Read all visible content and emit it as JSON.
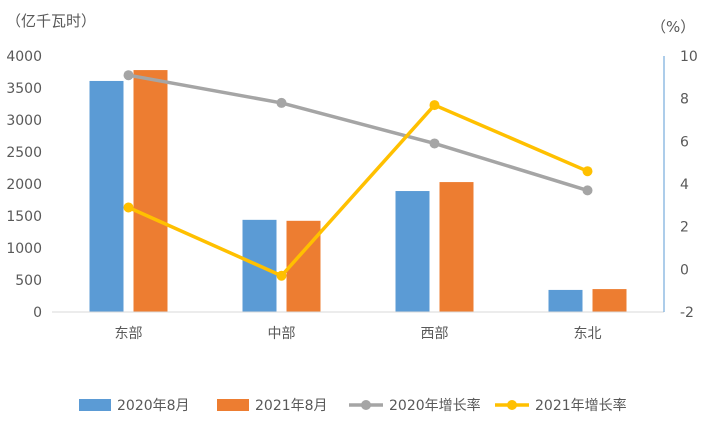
{
  "chart_data": {
    "type": "bar",
    "categories": [
      "东部",
      "中部",
      "西部",
      "东北"
    ],
    "series": [
      {
        "name": "2020年8月",
        "kind": "bar",
        "axis": "left",
        "color": "#5b9bd5",
        "values": [
          3610,
          1440,
          1890,
          345
        ]
      },
      {
        "name": "2021年8月",
        "kind": "bar",
        "axis": "left",
        "color": "#ed7d31",
        "values": [
          3780,
          1425,
          2030,
          358
        ]
      },
      {
        "name": "2020年增长率",
        "kind": "line",
        "axis": "right",
        "color": "#a5a5a5",
        "values": [
          9.1,
          7.8,
          5.9,
          3.7
        ]
      },
      {
        "name": "2021年增长率",
        "kind": "line",
        "axis": "right",
        "color": "#ffc000",
        "values": [
          2.9,
          -0.3,
          7.7,
          4.6
        ]
      }
    ],
    "left_axis": {
      "unit": "（亿千瓦时）",
      "min": 0,
      "max": 4000,
      "step": 500,
      "ticks": [
        "0",
        "500",
        "1000",
        "1500",
        "2000",
        "2500",
        "3000",
        "3500",
        "4000"
      ]
    },
    "right_axis": {
      "unit": "（%）",
      "min": -2,
      "max": 10,
      "step": 2,
      "ticks": [
        "-2",
        "0",
        "2",
        "4",
        "6",
        "8",
        "10"
      ]
    },
    "legend_position": "bottom",
    "grid": false
  }
}
